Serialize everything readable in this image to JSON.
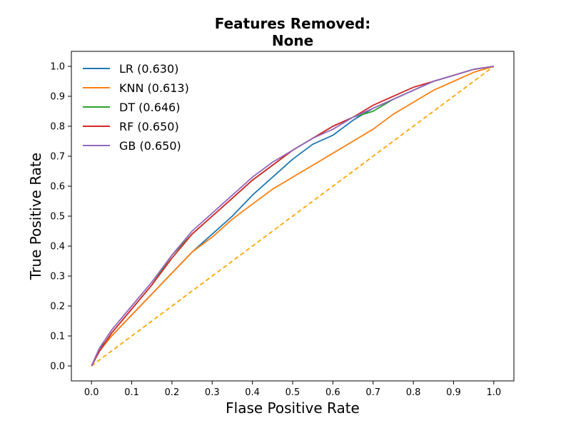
{
  "chart_data": {
    "type": "line",
    "title_line1": "Features Removed:",
    "title_line2": "None",
    "xlabel": "Flase Positive Rate",
    "ylabel": "True Positive Rate",
    "xlim": [
      -0.05,
      1.05
    ],
    "ylim": [
      -0.05,
      1.05
    ],
    "xticks": [
      "0.0",
      "0.1",
      "0.2",
      "0.3",
      "0.4",
      "0.5",
      "0.6",
      "0.7",
      "0.8",
      "0.9",
      "1.0"
    ],
    "yticks": [
      "0.0",
      "0.1",
      "0.2",
      "0.3",
      "0.4",
      "0.5",
      "0.6",
      "0.7",
      "0.8",
      "0.9",
      "1.0"
    ],
    "grid": false,
    "legend_position": "top-left",
    "series": [
      {
        "name": "LR (0.630)",
        "color": "#1f77b4",
        "x": [
          0.0,
          0.02,
          0.05,
          0.1,
          0.15,
          0.2,
          0.25,
          0.3,
          0.35,
          0.4,
          0.45,
          0.5,
          0.55,
          0.6,
          0.65,
          0.7,
          0.75,
          0.8,
          0.85,
          0.9,
          0.95,
          1.0
        ],
        "y": [
          0.0,
          0.06,
          0.1,
          0.17,
          0.24,
          0.31,
          0.38,
          0.44,
          0.5,
          0.57,
          0.63,
          0.69,
          0.74,
          0.77,
          0.82,
          0.86,
          0.89,
          0.92,
          0.95,
          0.97,
          0.99,
          1.0
        ]
      },
      {
        "name": "KNN (0.613)",
        "color": "#ff7f0e",
        "x": [
          0.0,
          0.02,
          0.05,
          0.1,
          0.15,
          0.2,
          0.25,
          0.3,
          0.35,
          0.4,
          0.45,
          0.5,
          0.55,
          0.6,
          0.65,
          0.7,
          0.75,
          0.8,
          0.85,
          0.9,
          0.95,
          1.0
        ],
        "y": [
          0.0,
          0.05,
          0.1,
          0.17,
          0.24,
          0.31,
          0.38,
          0.43,
          0.49,
          0.54,
          0.59,
          0.63,
          0.67,
          0.71,
          0.75,
          0.79,
          0.84,
          0.88,
          0.92,
          0.95,
          0.98,
          1.0
        ]
      },
      {
        "name": "DT (0.646)",
        "color": "#2ca02c",
        "x": [
          0.0,
          0.02,
          0.05,
          0.1,
          0.15,
          0.2,
          0.25,
          0.3,
          0.35,
          0.4,
          0.45,
          0.5,
          0.55,
          0.6,
          0.65,
          0.7,
          0.75,
          0.8,
          0.85,
          0.9,
          0.95,
          1.0
        ],
        "y": [
          0.0,
          0.05,
          0.11,
          0.19,
          0.27,
          0.37,
          0.44,
          0.5,
          0.56,
          0.62,
          0.67,
          0.72,
          0.76,
          0.8,
          0.83,
          0.85,
          0.89,
          0.92,
          0.95,
          0.97,
          0.99,
          1.0
        ]
      },
      {
        "name": "RF (0.650)",
        "color": "#d62728",
        "x": [
          0.0,
          0.02,
          0.05,
          0.1,
          0.15,
          0.2,
          0.25,
          0.3,
          0.35,
          0.4,
          0.45,
          0.5,
          0.55,
          0.6,
          0.65,
          0.7,
          0.75,
          0.8,
          0.85,
          0.9,
          0.95,
          1.0
        ],
        "y": [
          0.0,
          0.05,
          0.11,
          0.19,
          0.27,
          0.36,
          0.44,
          0.5,
          0.56,
          0.62,
          0.67,
          0.72,
          0.76,
          0.8,
          0.83,
          0.87,
          0.9,
          0.93,
          0.95,
          0.97,
          0.99,
          1.0
        ]
      },
      {
        "name": "GB (0.650)",
        "color": "#9467bd",
        "x": [
          0.0,
          0.02,
          0.05,
          0.1,
          0.15,
          0.2,
          0.25,
          0.3,
          0.35,
          0.4,
          0.45,
          0.5,
          0.55,
          0.6,
          0.65,
          0.7,
          0.75,
          0.8,
          0.85,
          0.9,
          0.95,
          1.0
        ],
        "y": [
          0.0,
          0.06,
          0.12,
          0.2,
          0.28,
          0.37,
          0.45,
          0.51,
          0.57,
          0.63,
          0.68,
          0.72,
          0.76,
          0.79,
          0.83,
          0.86,
          0.89,
          0.92,
          0.95,
          0.97,
          0.99,
          1.0
        ]
      }
    ],
    "reference_line": {
      "color": "#ffa500",
      "style": "dashed",
      "x": [
        0.0,
        1.0
      ],
      "y": [
        0.0,
        1.0
      ]
    }
  }
}
